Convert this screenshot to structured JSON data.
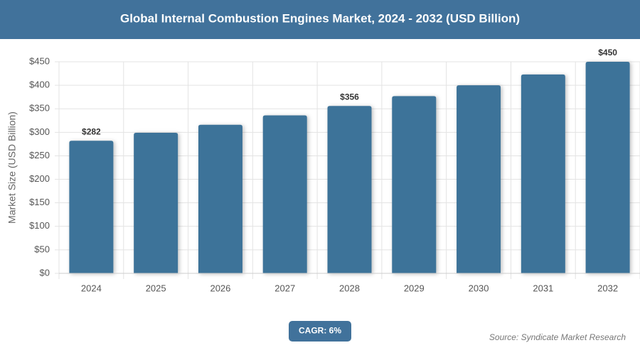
{
  "chart_data": {
    "type": "bar",
    "title": "Global Internal Combustion Engines Market, 2024 - 2032 (USD Billion)",
    "y_label": "Market Size (USD Billion)",
    "categories": [
      "2024",
      "2025",
      "2026",
      "2027",
      "2028",
      "2029",
      "2030",
      "2031",
      "2032"
    ],
    "values": [
      282,
      299,
      316,
      336,
      356,
      377,
      400,
      423,
      450
    ],
    "value_labels": [
      "$282",
      null,
      null,
      null,
      "$356",
      null,
      null,
      null,
      "$450"
    ],
    "color": "#3d7399",
    "ylim": [
      0,
      450
    ],
    "yticks": [
      {
        "value": 0,
        "label": "$0"
      },
      {
        "value": 50,
        "label": "$50"
      },
      {
        "value": 100,
        "label": "$100"
      },
      {
        "value": 150,
        "label": "$150"
      },
      {
        "value": 200,
        "label": "$200"
      },
      {
        "value": 250,
        "label": "$250"
      },
      {
        "value": 300,
        "label": "$300"
      },
      {
        "value": 350,
        "label": "$350"
      },
      {
        "value": 400,
        "label": "$400"
      },
      {
        "value": 450,
        "label": "$450"
      }
    ],
    "grid": true,
    "annotation": "CAGR: 6%",
    "source": "Source: Syndicate Market Research"
  }
}
